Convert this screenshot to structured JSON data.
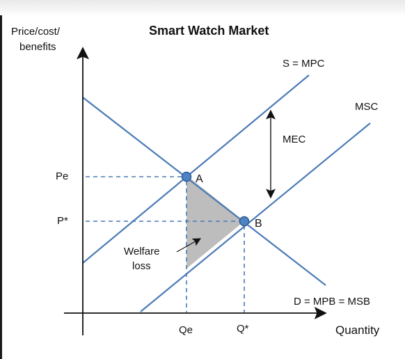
{
  "title": "Smart Watch Market",
  "y_axis_label_line1": "Price/cost/",
  "y_axis_label_line2": "benefits",
  "x_axis_label": "Quantity",
  "curves": {
    "supply": "S = MPC",
    "msc": "MSC",
    "demand": "D = MPB = MSB"
  },
  "points": {
    "a": "A",
    "b": "B"
  },
  "prices": {
    "pe": "Pe",
    "pstar": "P*"
  },
  "quantities": {
    "qe": "Qe",
    "qstar": "Q*"
  },
  "mec_label": "MEC",
  "welfare_loss_line1": "Welfare",
  "welfare_loss_line2": "loss",
  "colors": {
    "curve": "#4a7ab7",
    "dashed": "#4a7ab7",
    "point_fill": "#4f84c4",
    "point_stroke": "#2f5b91",
    "welfare_fill": "#bdbdbd",
    "axis": "#111111"
  }
}
